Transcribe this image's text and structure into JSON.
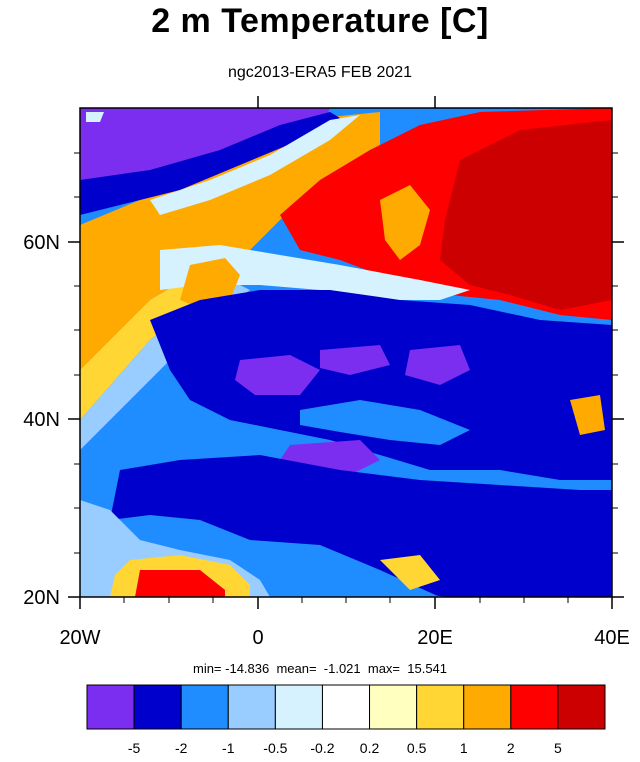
{
  "title": "2 m Temperature [C]",
  "subtitle": "ngc2013-ERA5 FEB 2021",
  "stats": "min= -14.836  mean=  -1.021  max=  15.541",
  "lat_labels": [
    "60N",
    "40N",
    "20N"
  ],
  "lon_labels": [
    "20W",
    "0",
    "20E",
    "40E"
  ],
  "colorbar": {
    "labels": [
      "-5",
      "-2",
      "-1",
      "-0.5",
      "-0.2",
      "0.2",
      "0.5",
      "1",
      "2",
      "5"
    ],
    "colors": [
      "#7b2df0",
      "#0000cc",
      "#1f8cff",
      "#99ccff",
      "#d6f2ff",
      "#ffffff",
      "#ffffc0",
      "#ffd633",
      "#ffaa00",
      "#ff0000",
      "#cc0000"
    ]
  },
  "map": {
    "lon_range": [
      -20,
      40
    ],
    "lat_range": [
      20,
      75
    ],
    "colors": {
      "very_cold": "#7b2df0",
      "cold": "#0000cc",
      "cool": "#1f8cff",
      "mild_cool": "#99ccff",
      "near_zero_cool": "#d6f2ff",
      "neutral": "#ffffff",
      "slight_warm": "#ffffc0",
      "warm": "#ffd633",
      "warmer": "#ffaa00",
      "hot": "#ff0000",
      "very_hot": "#cc0000"
    }
  }
}
